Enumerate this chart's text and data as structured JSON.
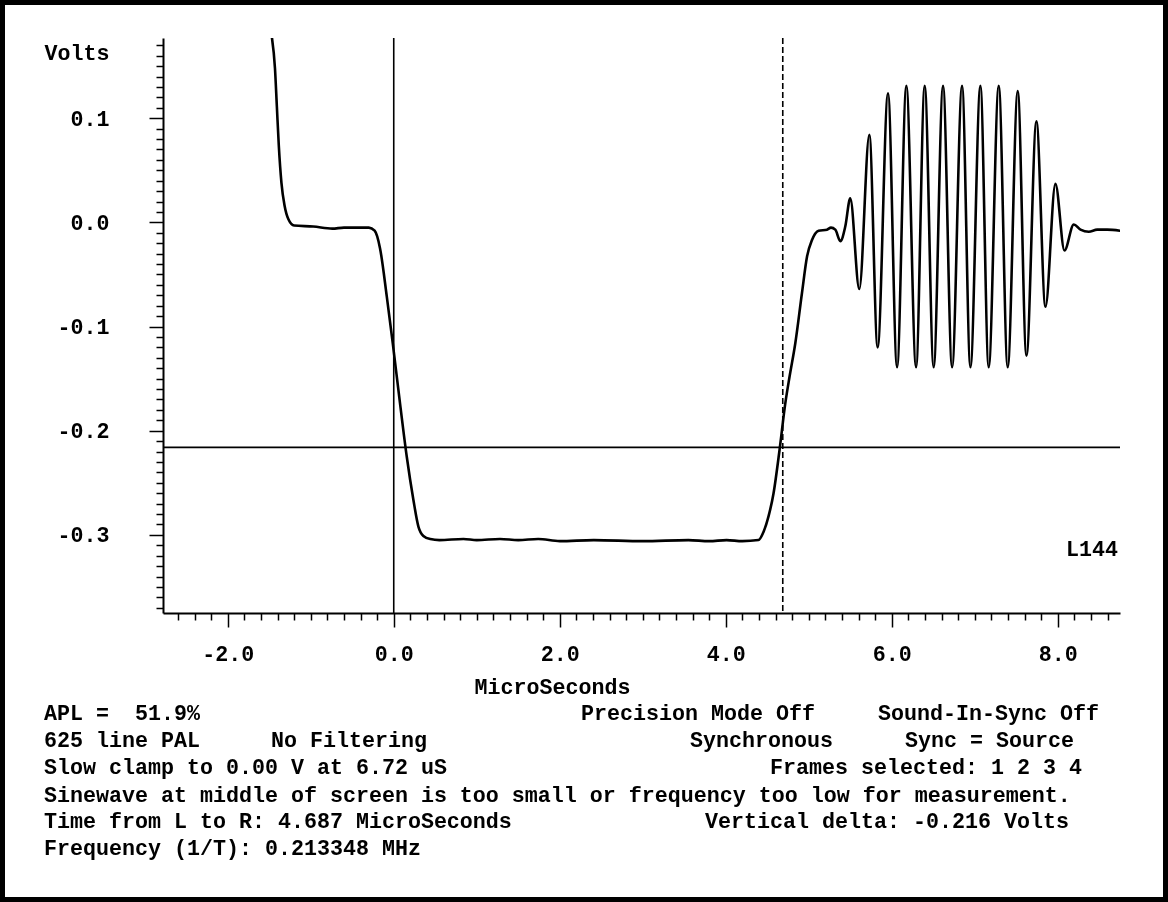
{
  "chart_data": {
    "type": "line",
    "xlabel": "MicroSeconds",
    "ylabel": "Volts",
    "annotations": [
      "L144",
      "APL =  51.9%",
      "Precision Mode Off",
      "Sound-In-Sync Off",
      "625 line PAL",
      "No Filtering",
      "Synchronous",
      "Sync = Source",
      "Slow clamp to 0.00 V at 6.72 uS",
      "Frames selected: 1 2 3 4",
      "Sinewave at middle of screen is too small or frequency too low for measurement.",
      "Time from L to R: 4.687 MicroSeconds",
      "Vertical delta: -0.216 Volts",
      "Frequency (1/T): 0.213348 MHz"
    ],
    "x": [
      -1.467,
      -1.431,
      -1.408,
      -1.385,
      -1.353,
      -1.315,
      -1.269,
      -1.2,
      -0.97,
      -0.74,
      -0.6,
      -0.3,
      -0.23,
      -0.165,
      -0.084,
      -0.012,
      0.076,
      0.157,
      0.236,
      0.297,
      0.357,
      0.44,
      0.55,
      0.84,
      1.0,
      1.28,
      1.5,
      1.74,
      2.0,
      2.41,
      3.0,
      3.55,
      3.8,
      4.01,
      4.2,
      4.395,
      4.456,
      4.516,
      4.576,
      4.649,
      4.717,
      4.769,
      4.838,
      4.918,
      4.979,
      5.039,
      5.119,
      5.22,
      5.268,
      5.32,
      5.381,
      5.44,
      5.5,
      5.609,
      5.73,
      5.83,
      5.955,
      6.064,
      6.176,
      6.293,
      6.397,
      6.505,
      6.618,
      6.727,
      6.847,
      6.948,
      7.068,
      7.168,
      7.289,
      7.397,
      7.518,
      7.623,
      7.743,
      7.852,
      7.972,
      8.081,
      8.193,
      8.274,
      8.374,
      8.475,
      8.596,
      8.75
    ],
    "series": [
      {
        "color": "#000000",
        "values": [
          0.177,
          0.148,
          0.111,
          0.074,
          0.038,
          0.016,
          0.003,
          -0.003,
          -0.004,
          -0.006,
          -0.005,
          -0.005,
          -0.008,
          -0.025,
          -0.071,
          -0.116,
          -0.174,
          -0.225,
          -0.266,
          -0.292,
          -0.301,
          -0.304,
          -0.305,
          -0.304,
          -0.305,
          -0.304,
          -0.305,
          -0.304,
          -0.306,
          -0.305,
          -0.306,
          -0.305,
          -0.306,
          -0.305,
          -0.306,
          -0.305,
          -0.297,
          -0.282,
          -0.26,
          -0.218,
          -0.174,
          -0.148,
          -0.116,
          -0.068,
          -0.033,
          -0.017,
          -0.008,
          -0.007,
          -0.005,
          -0.007,
          -0.018,
          -0.004,
          0.023,
          -0.064,
          0.084,
          -0.12,
          0.124,
          -0.139,
          0.131,
          -0.139,
          0.131,
          -0.139,
          0.131,
          -0.139,
          0.131,
          -0.139,
          0.131,
          -0.139,
          0.131,
          -0.139,
          0.126,
          -0.128,
          0.097,
          -0.081,
          0.037,
          -0.027,
          -0.002,
          -0.007,
          -0.009,
          -0.007,
          -0.007,
          -0.008
        ]
      }
    ],
    "xlim": [
      -2.78,
      8.75
    ],
    "ylim": [
      -0.375,
      0.177
    ],
    "xticks": [
      {
        "value": -2.6,
        "label": null
      },
      {
        "value": -2.4,
        "label": null
      },
      {
        "value": -2.2,
        "label": null
      },
      {
        "value": -2,
        "label": "-2.0"
      },
      {
        "value": -1.8,
        "label": null
      },
      {
        "value": -1.6,
        "label": null
      },
      {
        "value": -1.4,
        "label": null
      },
      {
        "value": -1.2,
        "label": null
      },
      {
        "value": -1,
        "label": null
      },
      {
        "value": -0.8,
        "label": null
      },
      {
        "value": -0.6,
        "label": null
      },
      {
        "value": -0.4,
        "label": null
      },
      {
        "value": -0.2,
        "label": null
      },
      {
        "value": 0,
        "label": "0.0"
      },
      {
        "value": 0.2,
        "label": null
      },
      {
        "value": 0.4,
        "label": null
      },
      {
        "value": 0.6,
        "label": null
      },
      {
        "value": 0.8,
        "label": null
      },
      {
        "value": 1,
        "label": null
      },
      {
        "value": 1.2,
        "label": null
      },
      {
        "value": 1.4,
        "label": null
      },
      {
        "value": 1.6,
        "label": null
      },
      {
        "value": 1.8,
        "label": null
      },
      {
        "value": 2,
        "label": "2.0"
      },
      {
        "value": 2.2,
        "label": null
      },
      {
        "value": 2.4,
        "label": null
      },
      {
        "value": 2.6,
        "label": null
      },
      {
        "value": 2.8,
        "label": null
      },
      {
        "value": 3,
        "label": null
      },
      {
        "value": 3.2,
        "label": null
      },
      {
        "value": 3.4,
        "label": null
      },
      {
        "value": 3.6,
        "label": null
      },
      {
        "value": 3.8,
        "label": null
      },
      {
        "value": 4,
        "label": "4.0"
      },
      {
        "value": 4.2,
        "label": null
      },
      {
        "value": 4.4,
        "label": null
      },
      {
        "value": 4.6,
        "label": null
      },
      {
        "value": 4.8,
        "label": null
      },
      {
        "value": 5,
        "label": null
      },
      {
        "value": 5.2,
        "label": null
      },
      {
        "value": 5.4,
        "label": null
      },
      {
        "value": 5.6,
        "label": null
      },
      {
        "value": 5.8,
        "label": null
      },
      {
        "value": 6,
        "label": "6.0"
      },
      {
        "value": 6.2,
        "label": null
      },
      {
        "value": 6.4,
        "label": null
      },
      {
        "value": 6.6,
        "label": null
      },
      {
        "value": 6.8,
        "label": null
      },
      {
        "value": 7,
        "label": null
      },
      {
        "value": 7.2,
        "label": null
      },
      {
        "value": 7.4,
        "label": null
      },
      {
        "value": 7.6,
        "label": null
      },
      {
        "value": 7.8,
        "label": null
      },
      {
        "value": 8,
        "label": "8.0"
      },
      {
        "value": 8.2,
        "label": null
      },
      {
        "value": 8.4,
        "label": null
      },
      {
        "value": 8.6,
        "label": null
      }
    ],
    "yticks": [
      {
        "value": -0.37,
        "label": null
      },
      {
        "value": -0.36,
        "label": null
      },
      {
        "value": -0.35,
        "label": null
      },
      {
        "value": -0.34,
        "label": null
      },
      {
        "value": -0.33,
        "label": null
      },
      {
        "value": -0.32,
        "label": null
      },
      {
        "value": -0.31,
        "label": null
      },
      {
        "value": -0.3,
        "label": "-0.3"
      },
      {
        "value": -0.29,
        "label": null
      },
      {
        "value": -0.28,
        "label": null
      },
      {
        "value": -0.27,
        "label": null
      },
      {
        "value": -0.26,
        "label": null
      },
      {
        "value": -0.25,
        "label": null
      },
      {
        "value": -0.24,
        "label": null
      },
      {
        "value": -0.23,
        "label": null
      },
      {
        "value": -0.22,
        "label": null
      },
      {
        "value": -0.21,
        "label": null
      },
      {
        "value": -0.2,
        "label": "-0.2"
      },
      {
        "value": -0.19,
        "label": null
      },
      {
        "value": -0.18,
        "label": null
      },
      {
        "value": -0.17,
        "label": null
      },
      {
        "value": -0.16,
        "label": null
      },
      {
        "value": -0.15,
        "label": null
      },
      {
        "value": -0.14,
        "label": null
      },
      {
        "value": -0.13,
        "label": null
      },
      {
        "value": -0.12,
        "label": null
      },
      {
        "value": -0.11,
        "label": null
      },
      {
        "value": -0.1,
        "label": "-0.1"
      },
      {
        "value": -0.09,
        "label": null
      },
      {
        "value": -0.08,
        "label": null
      },
      {
        "value": -0.07,
        "label": null
      },
      {
        "value": -0.06,
        "label": null
      },
      {
        "value": -0.05,
        "label": null
      },
      {
        "value": -0.04,
        "label": null
      },
      {
        "value": -0.03,
        "label": null
      },
      {
        "value": -0.02,
        "label": null
      },
      {
        "value": -0.01,
        "label": null
      },
      {
        "value": 0,
        "label": "0.0"
      },
      {
        "value": 0.01,
        "label": null
      },
      {
        "value": 0.02,
        "label": null
      },
      {
        "value": 0.03,
        "label": null
      },
      {
        "value": 0.04,
        "label": null
      },
      {
        "value": 0.05,
        "label": null
      },
      {
        "value": 0.06,
        "label": null
      },
      {
        "value": 0.07,
        "label": null
      },
      {
        "value": 0.08,
        "label": null
      },
      {
        "value": 0.09,
        "label": null
      },
      {
        "value": 0.1,
        "label": "0.1"
      },
      {
        "value": 0.11,
        "label": null
      },
      {
        "value": 0.12,
        "label": null
      },
      {
        "value": 0.13,
        "label": null
      },
      {
        "value": 0.14,
        "label": null
      },
      {
        "value": 0.15,
        "label": null
      },
      {
        "value": 0.16,
        "label": null
      },
      {
        "value": 0.17,
        "label": null
      }
    ],
    "ref_lines": [
      {
        "axis": "x",
        "value": 0,
        "color": "#000000",
        "line_style": "solid"
      },
      {
        "axis": "x",
        "value": 4.687,
        "color": "#000000",
        "line_style": "dashed"
      },
      {
        "axis": "y",
        "value": -0.216,
        "color": "#000000",
        "line_style": "solid"
      }
    ]
  }
}
